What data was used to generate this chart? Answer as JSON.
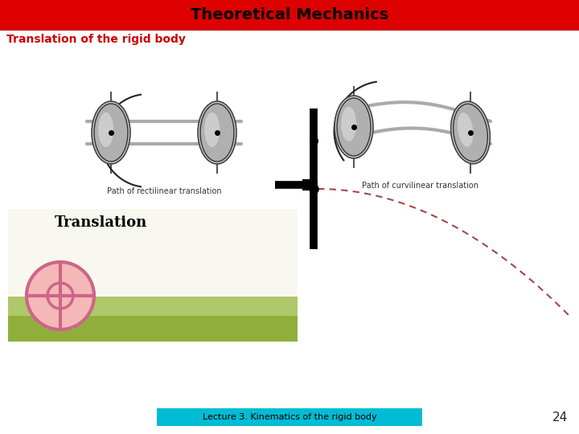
{
  "title": "Theoretical Mechanics",
  "title_bg": "#dd0000",
  "title_text_color": "#000000",
  "subtitle": "Translation of the rigid body",
  "subtitle_color": "#cc0000",
  "footer_text": "Lecture 3. Kinematics of the rigid body",
  "footer_bg": "#00bcd4",
  "footer_text_color": "#000000",
  "page_number": "24",
  "bg_color": "#ffffff",
  "translation_text": "Translation",
  "translation_color": "#000000",
  "label_rectilinear": "Path of rectilinear translation",
  "label_curvilinear": "Path of curvilinear translation",
  "olive_bg_dark": "#8faf3a",
  "olive_bg_light": "#afc86a",
  "wheel_fill": "#f5b8b8",
  "wheel_stroke": "#cc6688",
  "cross_color": "#000000",
  "dashed_color": "#993333"
}
